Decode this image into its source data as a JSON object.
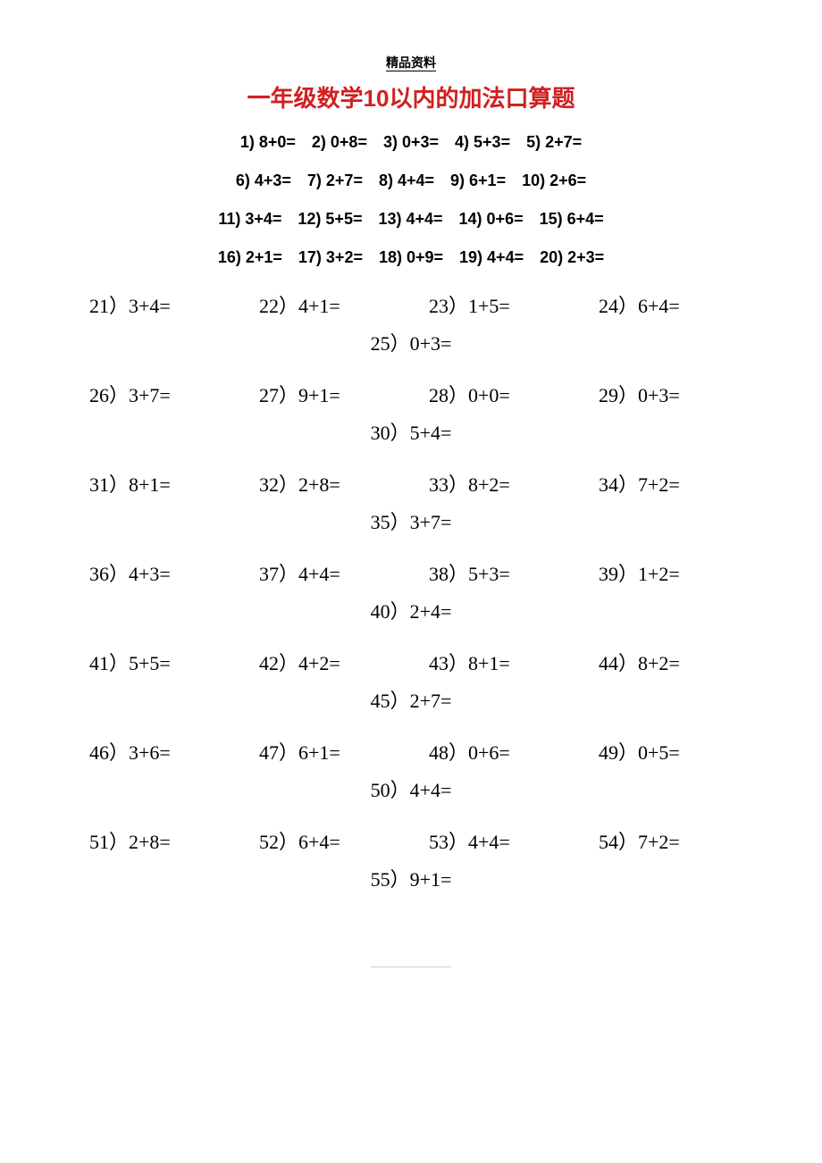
{
  "header_label": "精品资料",
  "title": "一年级数学10以内的加法口算题",
  "footer_dots": "………………………………………",
  "colors": {
    "title_color": "#d02020",
    "text_color": "#000000",
    "background_color": "#ffffff"
  },
  "typography": {
    "title_fontsize": 26,
    "block_a_fontsize": 18,
    "block_b_fontsize": 22,
    "header_fontsize": 14,
    "block_a_weight": 700,
    "block_b_weight": 400
  },
  "block_a_rows": [
    [
      {
        "n": "1)",
        "expr": "8+0="
      },
      {
        "n": "2)",
        "expr": "0+8="
      },
      {
        "n": "3)",
        "expr": "0+3="
      },
      {
        "n": "4)",
        "expr": "5+3="
      },
      {
        "n": "5)",
        "expr": "2+7="
      }
    ],
    [
      {
        "n": "6)",
        "expr": "4+3="
      },
      {
        "n": "7)",
        "expr": "2+7="
      },
      {
        "n": "8)",
        "expr": "4+4="
      },
      {
        "n": "9)",
        "expr": "6+1="
      },
      {
        "n": "10)",
        "expr": "2+6="
      }
    ],
    [
      {
        "n": "11)",
        "expr": "3+4="
      },
      {
        "n": "12)",
        "expr": "5+5="
      },
      {
        "n": "13)",
        "expr": "4+4="
      },
      {
        "n": "14)",
        "expr": "0+6="
      },
      {
        "n": "15)",
        "expr": "6+4="
      }
    ],
    [
      {
        "n": "16)",
        "expr": "2+1="
      },
      {
        "n": "17)",
        "expr": "3+2="
      },
      {
        "n": "18)",
        "expr": "0+9="
      },
      {
        "n": "19)",
        "expr": "4+4="
      },
      {
        "n": "20)",
        "expr": "2+3="
      }
    ]
  ],
  "block_b_groups": [
    {
      "line1": [
        {
          "n": "21）",
          "expr": "3+4="
        },
        {
          "n": "22）",
          "expr": "4+1="
        },
        {
          "n": "23）",
          "expr": "1+5="
        },
        {
          "n": "24）",
          "expr": "6+4="
        }
      ],
      "line2": {
        "n": "25）",
        "expr": "0+3="
      }
    },
    {
      "line1": [
        {
          "n": "26）",
          "expr": "3+7="
        },
        {
          "n": "27）",
          "expr": "9+1="
        },
        {
          "n": "28）",
          "expr": "0+0="
        },
        {
          "n": "29）",
          "expr": "0+3="
        }
      ],
      "line2": {
        "n": "30）",
        "expr": "5+4="
      }
    },
    {
      "line1": [
        {
          "n": "31）",
          "expr": "8+1="
        },
        {
          "n": "32）",
          "expr": "2+8="
        },
        {
          "n": "33）",
          "expr": "8+2="
        },
        {
          "n": "34）",
          "expr": "7+2="
        }
      ],
      "line2": {
        "n": "35）",
        "expr": "3+7="
      }
    },
    {
      "line1": [
        {
          "n": "36）",
          "expr": "4+3="
        },
        {
          "n": "37）",
          "expr": "4+4="
        },
        {
          "n": "38）",
          "expr": "5+3="
        },
        {
          "n": "39）",
          "expr": "1+2="
        }
      ],
      "line2": {
        "n": "40）",
        "expr": "2+4="
      }
    },
    {
      "line1": [
        {
          "n": "41）",
          "expr": "5+5="
        },
        {
          "n": "42）",
          "expr": "4+2="
        },
        {
          "n": "43）",
          "expr": "8+1="
        },
        {
          "n": "44）",
          "expr": "8+2="
        }
      ],
      "line2": {
        "n": "45）",
        "expr": "2+7="
      }
    },
    {
      "line1": [
        {
          "n": "46）",
          "expr": "3+6="
        },
        {
          "n": "47）",
          "expr": "6+1="
        },
        {
          "n": "48）",
          "expr": "0+6="
        },
        {
          "n": "49）",
          "expr": "0+5="
        }
      ],
      "line2": {
        "n": "50）",
        "expr": "4+4="
      }
    },
    {
      "line1": [
        {
          "n": "51）",
          "expr": "2+8="
        },
        {
          "n": "52）",
          "expr": "6+4="
        },
        {
          "n": "53）",
          "expr": "4+4="
        },
        {
          "n": "54）",
          "expr": "7+2="
        }
      ],
      "line2": {
        "n": "55）",
        "expr": "9+1="
      }
    }
  ]
}
